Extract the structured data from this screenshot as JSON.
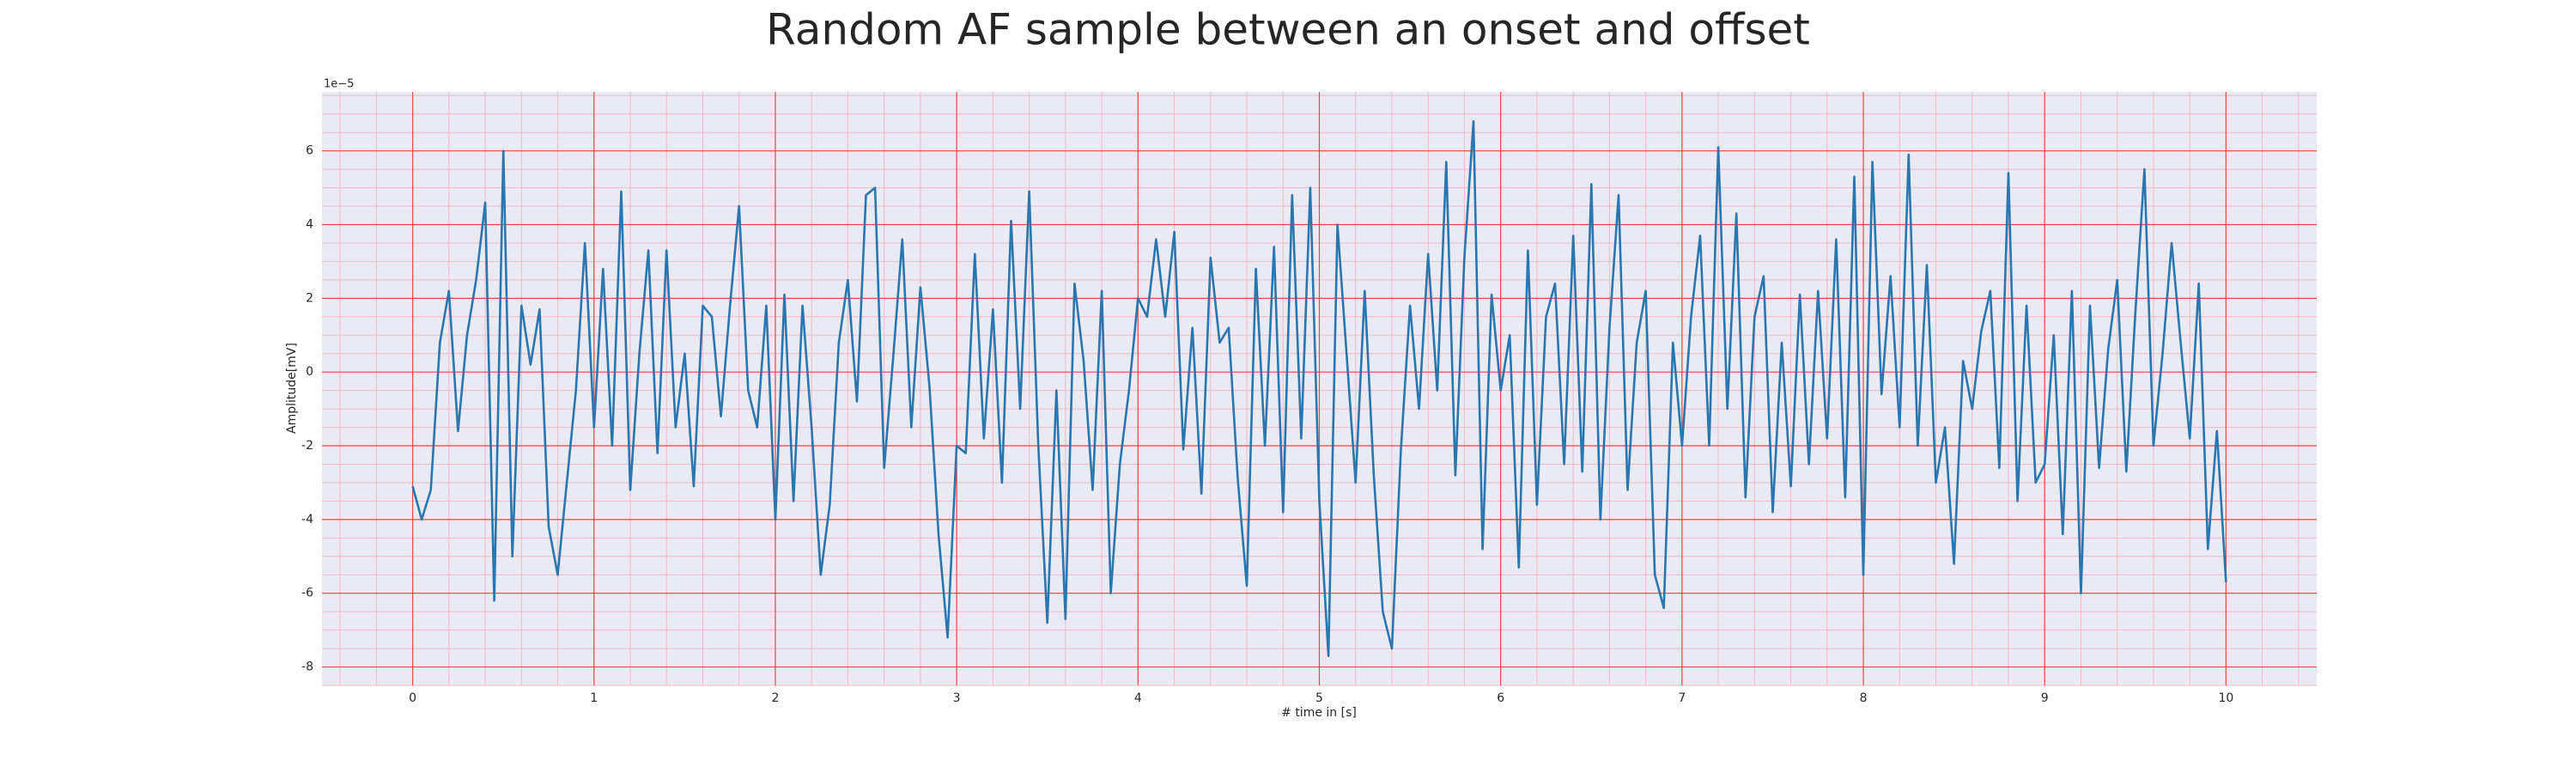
{
  "chart_data": {
    "type": "line",
    "title": "Random AF sample between an onset and offset",
    "xlabel": "# time in [s]",
    "ylabel": "Amplitude[mV]",
    "offset_label": "1e−5",
    "color": "#2a76b0",
    "grid": true,
    "xlim": [
      -0.5,
      10.5
    ],
    "ylim": [
      -8.5,
      7.6
    ],
    "xticks": [
      0,
      1,
      2,
      3,
      4,
      5,
      6,
      7,
      8,
      9,
      10
    ],
    "yticks": [
      -8,
      -6,
      -4,
      -2,
      0,
      2,
      4,
      6
    ],
    "xminorticks": [
      -0.4,
      -0.2,
      0,
      0.2,
      0.4,
      0.6,
      0.8,
      1,
      1.2,
      1.4,
      1.6,
      1.8,
      2,
      2.2,
      2.4,
      2.6,
      2.8,
      3,
      3.2,
      3.4,
      3.6,
      3.8,
      4,
      4.2,
      4.4,
      4.6,
      4.8,
      5,
      5.2,
      5.4,
      5.6,
      5.8,
      6,
      6.2,
      6.4,
      6.6,
      6.8,
      7,
      7.2,
      7.4,
      7.6,
      7.8,
      8,
      8.2,
      8.4,
      8.6,
      8.8,
      9,
      9.2,
      9.4,
      9.6,
      9.8,
      10,
      10.2,
      10.4
    ],
    "yminorticks": [
      -8.5,
      -8,
      -7.5,
      -7,
      -6.5,
      -6,
      -5.5,
      -5,
      -4.5,
      -4,
      -3.5,
      -3,
      -2.5,
      -2,
      -1.5,
      -1,
      -0.5,
      0,
      0.5,
      1,
      1.5,
      2,
      2.5,
      3,
      3.5,
      4,
      4.5,
      5,
      5.5,
      6,
      6.5,
      7,
      7.5
    ],
    "x": [
      0,
      0.05,
      0.1,
      0.15,
      0.2,
      0.25,
      0.3,
      0.35,
      0.4,
      0.45,
      0.5,
      0.55,
      0.6,
      0.65,
      0.7,
      0.75,
      0.8,
      0.85,
      0.9,
      0.95,
      1,
      1.05,
      1.1,
      1.15,
      1.2,
      1.25,
      1.3,
      1.35,
      1.4,
      1.45,
      1.5,
      1.55,
      1.6,
      1.65,
      1.7,
      1.75,
      1.8,
      1.85,
      1.9,
      1.95,
      2,
      2.05,
      2.1,
      2.15,
      2.2,
      2.25,
      2.3,
      2.35,
      2.4,
      2.45,
      2.5,
      2.55,
      2.6,
      2.65,
      2.7,
      2.75,
      2.8,
      2.85,
      2.9,
      2.95,
      3,
      3.05,
      3.1,
      3.15,
      3.2,
      3.25,
      3.3,
      3.35,
      3.4,
      3.45,
      3.5,
      3.55,
      3.6,
      3.65,
      3.7,
      3.75,
      3.8,
      3.85,
      3.9,
      3.95,
      4,
      4.05,
      4.1,
      4.15,
      4.2,
      4.25,
      4.3,
      4.35,
      4.4,
      4.45,
      4.5,
      4.55,
      4.6,
      4.65,
      4.7,
      4.75,
      4.8,
      4.85,
      4.9,
      4.95,
      5,
      5.05,
      5.1,
      5.15,
      5.2,
      5.25,
      5.3,
      5.35,
      5.4,
      5.45,
      5.5,
      5.55,
      5.6,
      5.65,
      5.7,
      5.75,
      5.8,
      5.85,
      5.9,
      5.95,
      6,
      6.05,
      6.1,
      6.15,
      6.2,
      6.25,
      6.3,
      6.35,
      6.4,
      6.45,
      6.5,
      6.55,
      6.6,
      6.65,
      6.7,
      6.75,
      6.8,
      6.85,
      6.9,
      6.95,
      7,
      7.05,
      7.1,
      7.15,
      7.2,
      7.25,
      7.3,
      7.35,
      7.4,
      7.45,
      7.5,
      7.55,
      7.6,
      7.65,
      7.7,
      7.75,
      7.8,
      7.85,
      7.9,
      7.95,
      8,
      8.05,
      8.1,
      8.15,
      8.2,
      8.25,
      8.3,
      8.35,
      8.4,
      8.45,
      8.5,
      8.55,
      8.6,
      8.65,
      8.7,
      8.75,
      8.8,
      8.85,
      8.9,
      8.95,
      9,
      9.05,
      9.1,
      9.15,
      9.2,
      9.25,
      9.3,
      9.35,
      9.4,
      9.45,
      9.5,
      9.55,
      9.6,
      9.65,
      9.7,
      9.75,
      9.8,
      9.85,
      9.9,
      9.95,
      10
    ],
    "values": [
      -3.1,
      -4.0,
      -3.2,
      0.8,
      2.2,
      -1.6,
      1.0,
      2.5,
      4.6,
      -6.2,
      6.0,
      -5.0,
      1.8,
      0.2,
      1.7,
      -4.2,
      -5.5,
      -3.0,
      -0.5,
      3.5,
      -1.5,
      2.8,
      -2.0,
      4.9,
      -3.2,
      0.5,
      3.3,
      -2.2,
      3.3,
      -1.5,
      0.5,
      -3.1,
      1.8,
      1.5,
      -1.2,
      1.8,
      4.5,
      -0.5,
      -1.5,
      1.8,
      -4.0,
      2.1,
      -3.5,
      1.8,
      -1.5,
      -5.5,
      -3.6,
      0.8,
      2.5,
      -0.8,
      4.8,
      5.0,
      -2.6,
      0.4,
      3.6,
      -1.5,
      2.3,
      -0.4,
      -4.4,
      -7.2,
      -2.0,
      -2.2,
      3.2,
      -1.8,
      1.7,
      -3.0,
      4.1,
      -1.0,
      4.9,
      -2.0,
      -6.8,
      -0.5,
      -6.7,
      2.4,
      0.3,
      -3.2,
      2.2,
      -6.0,
      -2.5,
      -0.5,
      2.0,
      1.5,
      3.6,
      1.5,
      3.8,
      -2.1,
      1.2,
      -3.3,
      3.1,
      0.8,
      1.2,
      -2.9,
      -5.8,
      2.8,
      -2.0,
      3.4,
      -3.8,
      4.8,
      -1.8,
      5.0,
      -3.5,
      -7.7,
      4.0,
      0.5,
      -3.0,
      2.2,
      -2.8,
      -6.5,
      -7.5,
      -2.1,
      1.8,
      -1.0,
      3.2,
      -0.5,
      5.7,
      -2.8,
      3.1,
      6.8,
      -4.8,
      2.1,
      -0.5,
      1.0,
      -5.3,
      3.3,
      -3.6,
      1.5,
      2.4,
      -2.5,
      3.7,
      -2.7,
      5.1,
      -4.0,
      1.2,
      4.8,
      -3.2,
      0.8,
      2.2,
      -5.5,
      -6.4,
      0.8,
      -2.0,
      1.5,
      3.7,
      -2.0,
      6.1,
      -1.0,
      4.3,
      -3.4,
      1.5,
      2.6,
      -3.8,
      0.8,
      -3.1,
      2.1,
      -2.5,
      2.2,
      -1.8,
      3.6,
      -3.4,
      5.3,
      -5.5,
      5.7,
      -0.6,
      2.6,
      -1.5,
      5.9,
      -2.0,
      2.9,
      -3.0,
      -1.5,
      -5.2,
      0.3,
      -1.0,
      1.1,
      2.2,
      -2.6,
      5.4,
      -3.5,
      1.8,
      -3.0,
      -2.5,
      1.0,
      -4.4,
      2.2,
      -6.0,
      1.8,
      -2.6,
      0.6,
      2.5,
      -2.7,
      1.6,
      5.5,
      -2.0,
      0.5,
      3.5,
      0.8,
      -1.8,
      2.4,
      -4.8,
      -1.6,
      -5.7
    ]
  }
}
